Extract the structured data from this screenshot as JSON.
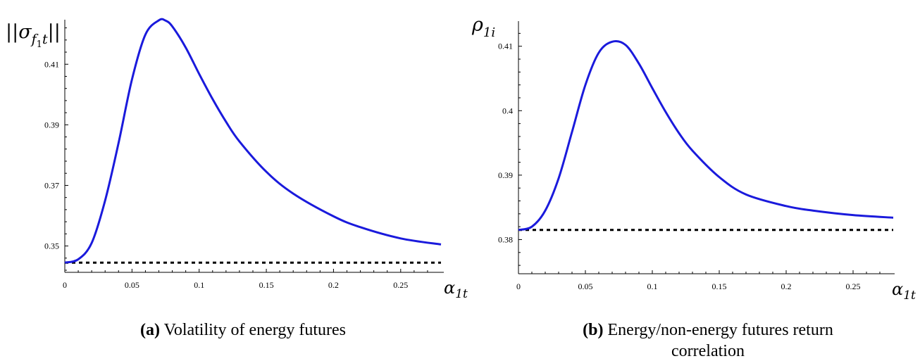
{
  "colors": {
    "curve": "#1a1adc",
    "baseline": "#000000",
    "axis": "#000000"
  },
  "chart_data": [
    {
      "type": "line",
      "caption_tag": "(a)",
      "caption": "Volatility of energy futures",
      "ylabel_base": "||σ",
      "ylabel_sub_f": "f",
      "ylabel_sub_1": "1",
      "ylabel_sub_t": "t",
      "ylabel_close": "||",
      "xlabel_base": "α",
      "xlabel_sub": "1t",
      "xlim": [
        0,
        0.28
      ],
      "ylim": [
        0.3413,
        0.4247
      ],
      "xticks": [
        "0",
        "0.05",
        "0.1",
        "0.15",
        "0.2",
        "0.25"
      ],
      "xtick_values": [
        0,
        0.05,
        0.1,
        0.15,
        0.2,
        0.25
      ],
      "yticks": [
        "0.35",
        "0.37",
        "0.39",
        "0.41"
      ],
      "ytick_values": [
        0.35,
        0.37,
        0.39,
        0.41
      ],
      "baseline": 0.3445,
      "series": [
        {
          "x": [
            0,
            0.01,
            0.02,
            0.03,
            0.04,
            0.05,
            0.06,
            0.07,
            0.075,
            0.08,
            0.09,
            0.1,
            0.11,
            0.12,
            0.13,
            0.15,
            0.17,
            0.2,
            0.22,
            0.25,
            0.28
          ],
          "y": [
            0.3445,
            0.3456,
            0.351,
            0.365,
            0.384,
            0.405,
            0.4198,
            0.4245,
            0.4244,
            0.4225,
            0.4155,
            0.4068,
            0.3985,
            0.391,
            0.3845,
            0.3745,
            0.3673,
            0.3598,
            0.3562,
            0.3525,
            0.3505
          ]
        }
      ]
    },
    {
      "type": "line",
      "caption_tag": "(b)",
      "caption_line1": "Energy/non-energy futures return",
      "caption_line2": "correlation",
      "ylabel_base": "ρ",
      "ylabel_sub": "1i",
      "xlabel_base": "α",
      "xlabel_sub": "1t",
      "xlim": [
        0,
        0.28
      ],
      "ylim": [
        0.3747,
        0.4139
      ],
      "xticks": [
        "0",
        "0.05",
        "0.1",
        "0.15",
        "0.2",
        "0.25"
      ],
      "xtick_values": [
        0,
        0.05,
        0.1,
        0.15,
        0.2,
        0.25
      ],
      "yticks": [
        "0.38",
        "0.39",
        "0.4",
        "0.41"
      ],
      "ytick_values": [
        0.38,
        0.39,
        0.4,
        0.41
      ],
      "baseline": 0.3815,
      "series": [
        {
          "x": [
            0,
            0.01,
            0.02,
            0.03,
            0.04,
            0.05,
            0.06,
            0.07,
            0.08,
            0.09,
            0.1,
            0.11,
            0.12,
            0.13,
            0.15,
            0.17,
            0.2,
            0.22,
            0.25,
            0.28
          ],
          "y": [
            0.3815,
            0.382,
            0.3845,
            0.3895,
            0.3967,
            0.404,
            0.409,
            0.4107,
            0.4102,
            0.4073,
            0.4035,
            0.3998,
            0.3965,
            0.3938,
            0.3897,
            0.387,
            0.3852,
            0.3845,
            0.3838,
            0.3834
          ]
        }
      ]
    }
  ]
}
